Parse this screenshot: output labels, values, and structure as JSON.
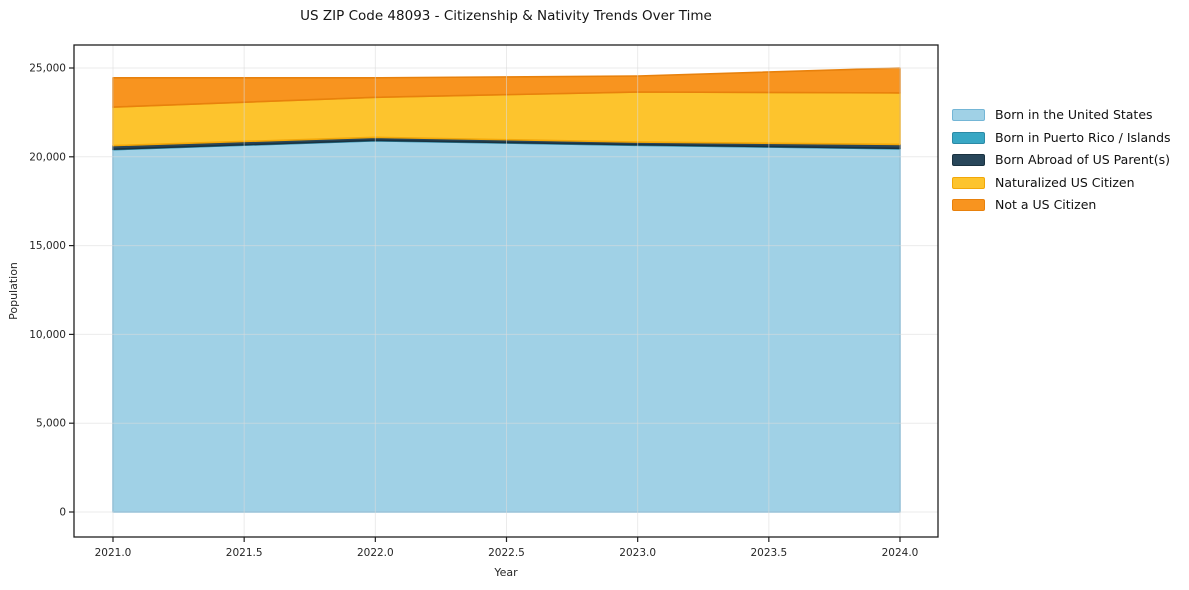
{
  "figure": {
    "background": "#ffffff",
    "frame_color": "#1f1f1f",
    "text_color": "#262626"
  },
  "chart_data": {
    "type": "area",
    "stacked": true,
    "title": "US ZIP Code 48093 - Citizenship & Nativity Trends Over Time",
    "xlabel": "Year",
    "ylabel": "Population",
    "x": [
      2021,
      2022,
      2023,
      2024
    ],
    "x_ticks": [
      2021.0,
      2021.5,
      2022.0,
      2022.5,
      2023.0,
      2023.5,
      2024.0
    ],
    "x_tick_labels": [
      "2021.0",
      "2021.5",
      "2022.0",
      "2022.5",
      "2023.0",
      "2023.5",
      "2024.0"
    ],
    "y_ticks": [
      0,
      5000,
      10000,
      15000,
      20000,
      25000
    ],
    "y_tick_labels": [
      "0",
      "5,000",
      "10,000",
      "15,000",
      "20,000",
      "25,000"
    ],
    "ylim": [
      0,
      25000
    ],
    "grid": true,
    "grid_color": "#dcdcdc",
    "legend_position": "right",
    "series": [
      {
        "name": "Born in the United States",
        "color": "#a0d1e6",
        "edge": "#74b6d6",
        "values": [
          20400,
          20900,
          20650,
          20450
        ]
      },
      {
        "name": "Born in Puerto Rico / Islands",
        "color": "#38a7c4",
        "edge": "#2b8aa6",
        "values": [
          30,
          30,
          30,
          30
        ]
      },
      {
        "name": "Born Abroad of US Parent(s)",
        "color": "#28465a",
        "edge": "#1a3240",
        "values": [
          200,
          170,
          150,
          220
        ]
      },
      {
        "name": "Naturalized US Citizen",
        "color": "#fdc42d",
        "edge": "#f2a708",
        "values": [
          2170,
          2250,
          2820,
          2900
        ]
      },
      {
        "name": "Not a US Citizen",
        "color": "#f8941f",
        "edge": "#e8810c",
        "values": [
          1650,
          1100,
          900,
          1400
        ]
      }
    ],
    "totals_by_year": [
      24450,
      24450,
      24550,
      25000
    ]
  }
}
